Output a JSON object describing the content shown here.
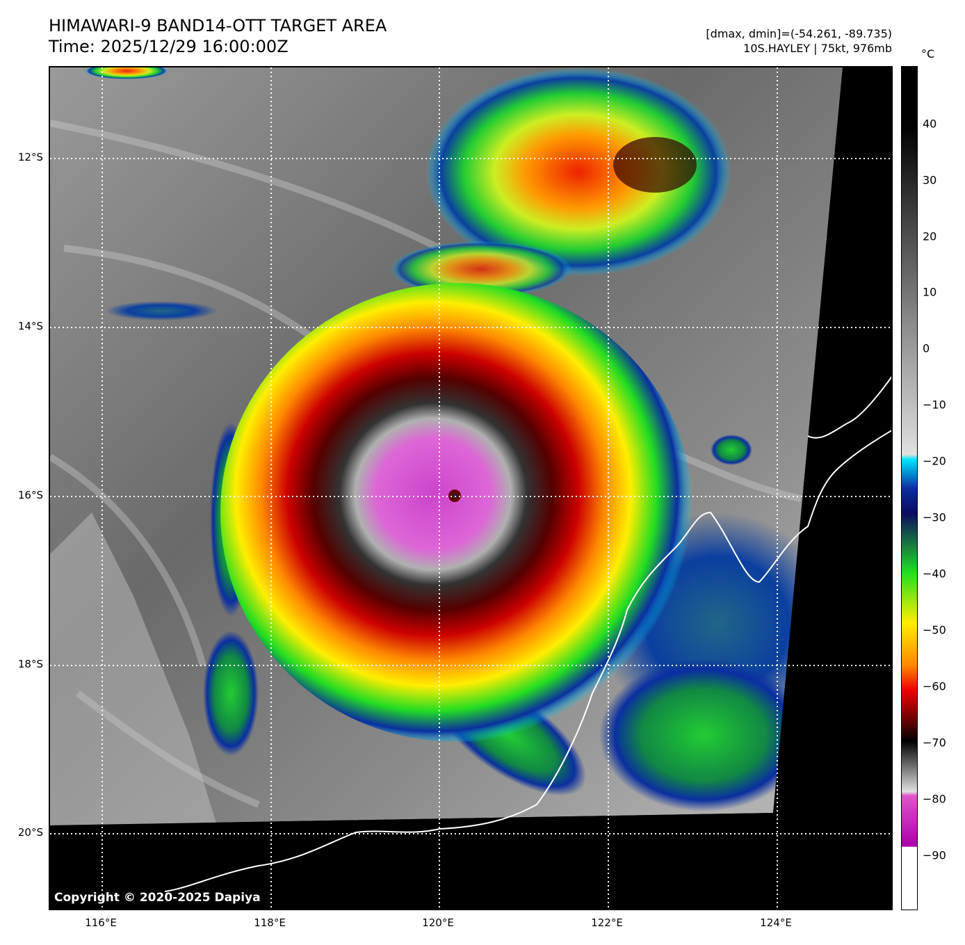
{
  "header": {
    "title_line1": "HIMAWARI-9 BAND14-OTT TARGET AREA",
    "title_line2": "Time: 2025/12/29 16:00:00Z",
    "range_text": "[dmax, dmin]=(-54.261, -89.735)",
    "storm_text": "10S.HAYLEY | 75kt, 976mb"
  },
  "map": {
    "lat_labels": [
      "12°S",
      "14°S",
      "16°S",
      "18°S",
      "20°S"
    ],
    "lon_labels": [
      "116°E",
      "118°E",
      "120°E",
      "122°E",
      "124°E"
    ],
    "copyright": "Copyright © 2020-2025 Dapiya"
  },
  "colorbar": {
    "unit": "°C",
    "ticks": [
      "40",
      "30",
      "20",
      "10",
      "0",
      "−10",
      "−20",
      "−30",
      "−40",
      "−50",
      "−60",
      "−70",
      "−80",
      "−90"
    ],
    "colors": {
      "warm": "#000000",
      "mid_gray": "#888888",
      "cold_gray": "#e0e0e0",
      "cyan": "#00e5ff",
      "blue": "#0a2fa0",
      "navy": "#0b0b60",
      "green": "#22dd22",
      "yellow": "#ffee00",
      "orange": "#ff8800",
      "red": "#ee0000",
      "dark_red": "#550000",
      "magenta": "#dd55cc",
      "purple": "#aa00aa",
      "white": "#ffffff"
    }
  }
}
